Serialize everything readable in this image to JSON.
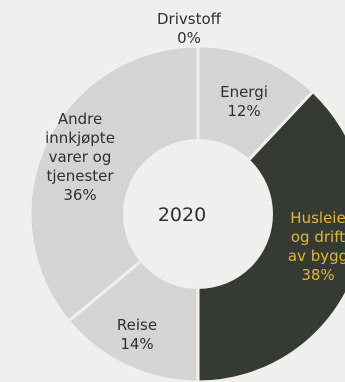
{
  "chart_data": {
    "type": "donut",
    "center_label": "2020",
    "slices": [
      {
        "label_lines": [
          "Drivstoff"
        ],
        "value_label": "0%",
        "value": 0,
        "color": "#d4d4d2",
        "text_color": "#2f2f2f"
      },
      {
        "label_lines": [
          "Energi"
        ],
        "value_label": "12%",
        "value": 12,
        "color": "#d4d4d2",
        "text_color": "#2f2f2f"
      },
      {
        "label_lines": [
          "Husleie",
          "og drift",
          "av bygg"
        ],
        "value_label": "38%",
        "value": 38,
        "color": "#353a33",
        "text_color": "#e2b63a"
      },
      {
        "label_lines": [
          "Reise"
        ],
        "value_label": "14%",
        "value": 14,
        "color": "#d4d4d2",
        "text_color": "#2f2f2f"
      },
      {
        "label_lines": [
          "Andre",
          "innkjøpte",
          "varer og",
          "tjenester"
        ],
        "value_label": "36%",
        "value": 36,
        "color": "#d4d4d2",
        "text_color": "#2f2f2f"
      }
    ],
    "colors": {
      "background": "#f0efed",
      "separator": "#f0efed",
      "center": "#f0efed",
      "center_text": "#2f2f2f"
    }
  }
}
